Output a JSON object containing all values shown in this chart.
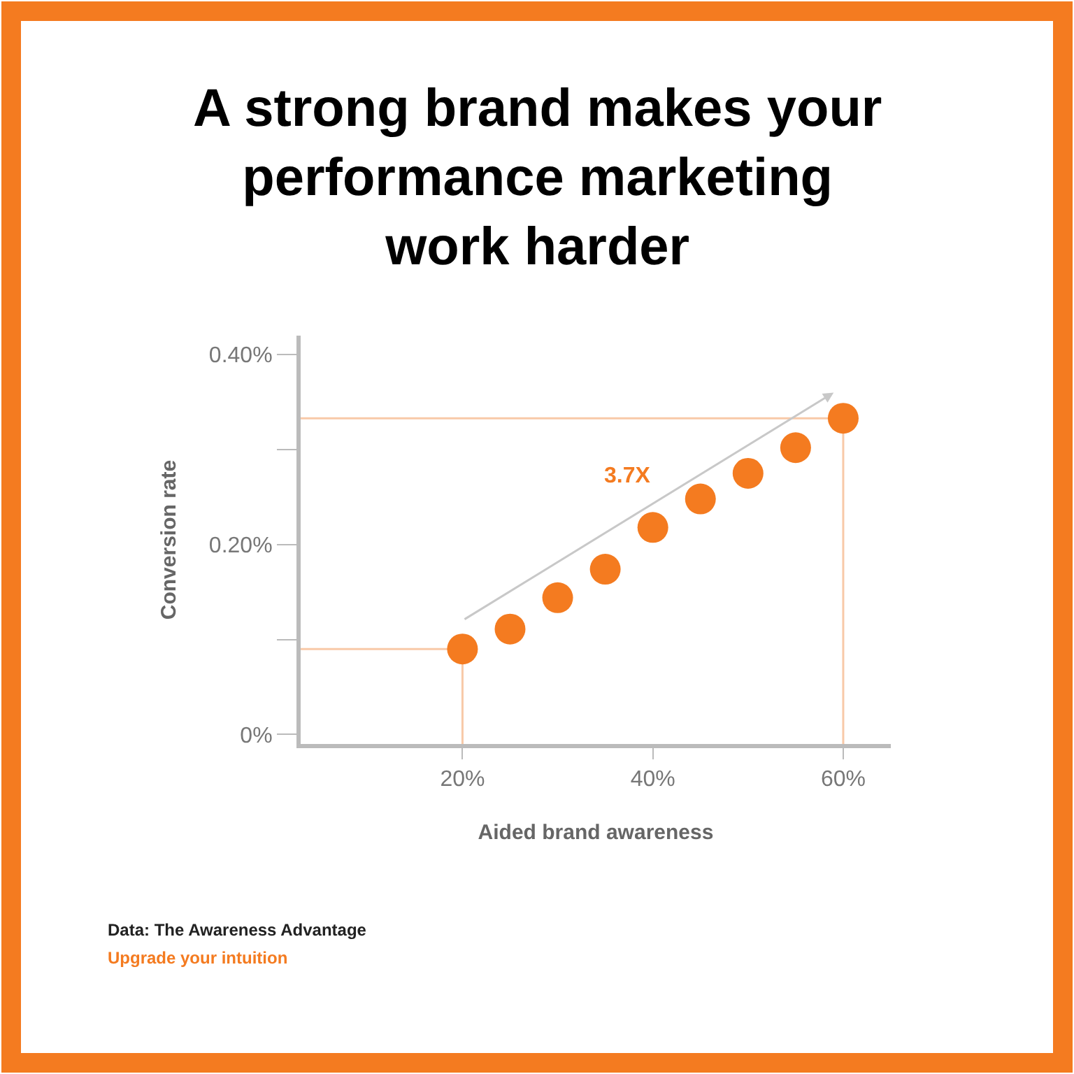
{
  "chart_data": {
    "type": "scatter",
    "title": "A strong brand makes your\nperformance marketing\nwork harder",
    "xlabel": "Aided brand awareness",
    "ylabel": "Conversion rate",
    "x": [
      20,
      25,
      30,
      35,
      40,
      45,
      50,
      55,
      60
    ],
    "series": [
      {
        "color": "#f47b20",
        "values": [
          0.09,
          0.111,
          0.144,
          0.174,
          0.218,
          0.248,
          0.275,
          0.302,
          0.333
        ]
      }
    ],
    "xlim": [
      3,
      65
    ],
    "xticks": [
      {
        "value": 20,
        "label": "20%"
      },
      {
        "value": 40,
        "label": "40%"
      },
      {
        "value": 60,
        "label": "60%"
      }
    ],
    "ylim": [
      -0.01,
      0.42
    ],
    "yticks": [
      {
        "value": 0,
        "label": "0%"
      },
      {
        "value": 0.1,
        "label": null
      },
      {
        "value": 0.2,
        "label": "0.20%"
      },
      {
        "value": 0.3,
        "label": null
      },
      {
        "value": 0.4,
        "label": "0.40%"
      }
    ],
    "ref_lines": [
      {
        "axis": "y",
        "value": 0.09,
        "color": "#f8c9a8"
      },
      {
        "axis": "y",
        "value": 0.333,
        "color": "#f8c9a8"
      },
      {
        "axis": "x",
        "value": 20,
        "color": "#f8c9a8"
      },
      {
        "axis": "x",
        "value": 60,
        "color": "#f8c9a8"
      }
    ],
    "annotations": [
      "3.7X",
      "Data: The Awareness Advantage",
      "Upgrade your intuition"
    ],
    "marker": "circle",
    "grid": false
  }
}
